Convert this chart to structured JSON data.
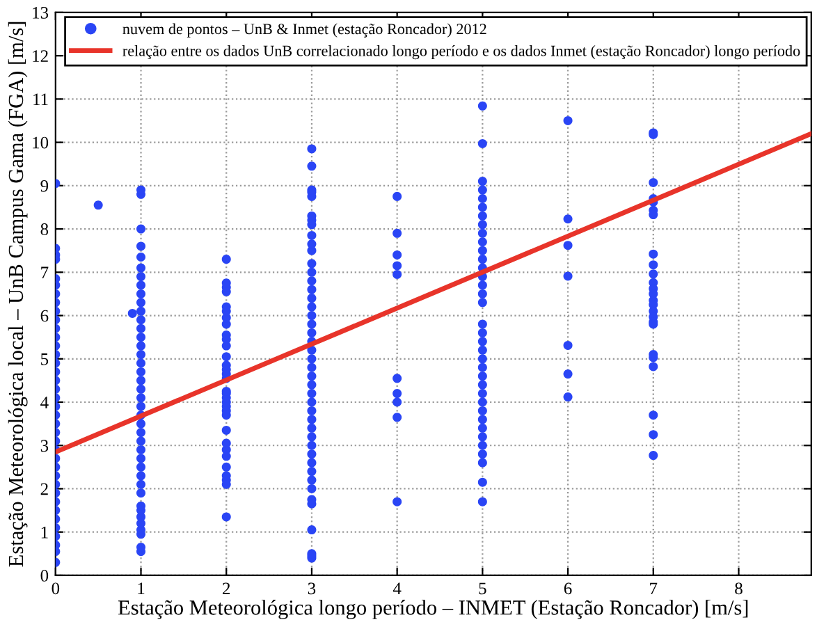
{
  "chart_data": {
    "type": "scatter",
    "xlabel": "Estação Meteorológica longo período – INMET (Estação Roncador) [m/s]",
    "ylabel": "Estação Meteorológica local – UnB Campus Gama (FGA) [m/s]",
    "xlim": [
      0,
      8.85
    ],
    "ylim": [
      0,
      13
    ],
    "xticks": [
      0,
      1,
      2,
      3,
      4,
      5,
      6,
      7,
      8
    ],
    "yticks": [
      0,
      1,
      2,
      3,
      4,
      5,
      6,
      7,
      8,
      9,
      10,
      11,
      12,
      13
    ],
    "grid": true,
    "legend": "top right",
    "series": [
      {
        "name": "nuvem de pontos – UnB & Inmet (estação Roncador) 2012",
        "color": "#2a45f5",
        "marker": "circle",
        "x": [
          0,
          0,
          0,
          0,
          0,
          0,
          0,
          0,
          0,
          0,
          0,
          0,
          0,
          0,
          0,
          0,
          0,
          0,
          0,
          0,
          0,
          0,
          0,
          0,
          0,
          0,
          0,
          0,
          0,
          0,
          0,
          0,
          0,
          0,
          0,
          0,
          0,
          0,
          0.5,
          0.9,
          1,
          1,
          1,
          1,
          1,
          1,
          1,
          1,
          1,
          1,
          1,
          1,
          1,
          1,
          1,
          1,
          1,
          1,
          1,
          1,
          1,
          1,
          1,
          1,
          1,
          1,
          1,
          1,
          1,
          1,
          1,
          1,
          1,
          1,
          1,
          1,
          1,
          1,
          1,
          1,
          2,
          2,
          2,
          2,
          2,
          2,
          2,
          2,
          2,
          2,
          2,
          2,
          2,
          2,
          2,
          2,
          2,
          2,
          2,
          2,
          2,
          2,
          2,
          2,
          2,
          2,
          2,
          2,
          2,
          2,
          2,
          2,
          3,
          3,
          3,
          3,
          3,
          3,
          3,
          3,
          3,
          3,
          3,
          3,
          3,
          3,
          3,
          3,
          3,
          3,
          3,
          3,
          3,
          3,
          3,
          3,
          3,
          3,
          3,
          3,
          3,
          3,
          3,
          3,
          3,
          3,
          3,
          3,
          3,
          3,
          3,
          3,
          3,
          3,
          3,
          3,
          4,
          4,
          4,
          4,
          4,
          4,
          4,
          4,
          4,
          4,
          5,
          5,
          5,
          5,
          5,
          5,
          5,
          5,
          5,
          5,
          5,
          5,
          5,
          5,
          5,
          5,
          5,
          5,
          5,
          5,
          5,
          5,
          5,
          5,
          5,
          5,
          5,
          5,
          5,
          5,
          5,
          5,
          5,
          5,
          5,
          5,
          6,
          6,
          6,
          6,
          6,
          6,
          6,
          7,
          7,
          7,
          7,
          7,
          7,
          7,
          7,
          7,
          7,
          7,
          7,
          7,
          7,
          7,
          7,
          7,
          7,
          7,
          7,
          7,
          7,
          7,
          7,
          7
        ],
        "values": [
          0.3,
          0.55,
          0.7,
          0.9,
          1.1,
          1.3,
          1.5,
          1.7,
          1.9,
          2.1,
          2.3,
          2.5,
          2.7,
          2.9,
          3.1,
          3.3,
          3.5,
          3.7,
          3.9,
          4.1,
          4.3,
          4.5,
          4.7,
          4.9,
          5.1,
          5.3,
          5.5,
          5.7,
          5.9,
          6.1,
          6.3,
          6.5,
          6.7,
          6.85,
          7.3,
          7.4,
          7.55,
          9.05,
          8.55,
          6.05,
          0.55,
          0.65,
          0.95,
          1.05,
          1.2,
          1.35,
          1.5,
          1.6,
          1.9,
          2.1,
          2.3,
          2.5,
          2.7,
          2.9,
          3.1,
          3.3,
          3.5,
          3.7,
          3.9,
          4.1,
          4.3,
          4.5,
          4.7,
          4.9,
          5.1,
          5.3,
          5.5,
          5.7,
          5.9,
          6.1,
          6.3,
          6.5,
          6.7,
          6.9,
          7.1,
          7.35,
          7.6,
          8.0,
          8.8,
          8.9,
          1.35,
          2.1,
          2.2,
          2.3,
          2.5,
          2.75,
          2.9,
          3.05,
          3.35,
          3.7,
          3.8,
          3.9,
          4.0,
          4.1,
          4.2,
          4.25,
          4.55,
          4.65,
          4.75,
          4.85,
          5.05,
          5.3,
          5.45,
          5.55,
          5.8,
          5.95,
          6.1,
          6.2,
          6.55,
          6.65,
          6.75,
          7.3,
          0.4,
          0.45,
          0.5,
          1.05,
          1.65,
          1.75,
          2.0,
          2.2,
          2.4,
          2.6,
          2.8,
          3.0,
          3.2,
          3.4,
          3.6,
          3.8,
          4.0,
          4.2,
          4.4,
          4.6,
          4.8,
          5.0,
          5.2,
          5.4,
          5.6,
          5.8,
          6.0,
          6.2,
          6.4,
          6.6,
          6.8,
          7.0,
          7.2,
          7.5,
          7.65,
          7.85,
          8.1,
          8.2,
          8.3,
          8.75,
          8.85,
          8.9,
          9.45,
          9.85,
          1.7,
          3.65,
          4.0,
          4.2,
          4.55,
          6.95,
          7.15,
          7.4,
          7.9,
          8.75,
          1.7,
          2.15,
          2.6,
          2.8,
          3.0,
          3.2,
          3.4,
          3.6,
          3.8,
          4.0,
          4.2,
          4.4,
          4.6,
          4.8,
          5.0,
          5.2,
          5.4,
          5.6,
          5.8,
          6.3,
          6.5,
          6.7,
          6.9,
          7.1,
          7.3,
          7.5,
          7.7,
          7.9,
          8.1,
          8.3,
          8.5,
          8.7,
          8.9,
          9.1,
          9.97,
          10.84,
          10.5,
          8.23,
          7.62,
          6.91,
          5.31,
          4.65,
          4.12,
          10.22,
          10.18,
          9.07,
          8.7,
          8.62,
          8.43,
          8.33,
          7.42,
          7.17,
          6.96,
          6.76,
          6.62,
          6.5,
          6.35,
          6.25,
          6.1,
          5.97,
          5.85,
          5.8,
          5.1,
          5.03,
          4.82,
          3.7,
          3.25,
          2.77
        ]
      },
      {
        "name": "relação entre os dados UnB correlacionado longo período e os dados Inmet (estação Roncador) longo período",
        "type": "line",
        "color": "#e8342a",
        "line_style": "solid",
        "marker": "none",
        "x": [
          0,
          8.85
        ],
        "values": [
          2.85,
          10.2
        ]
      }
    ]
  }
}
